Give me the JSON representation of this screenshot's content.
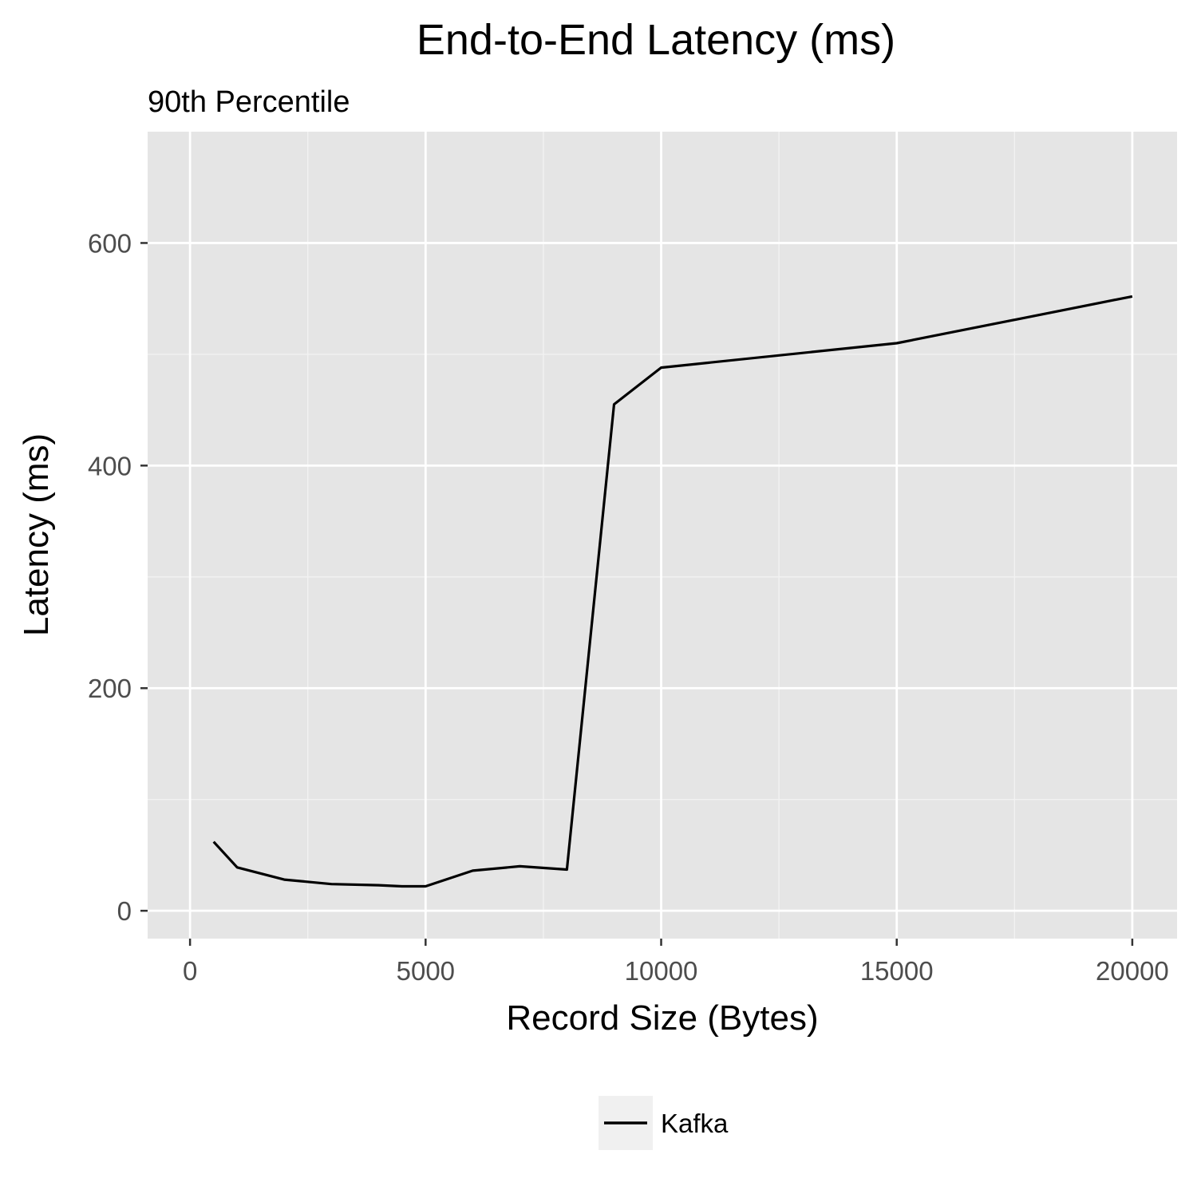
{
  "chart_data": {
    "type": "line",
    "title": "End-to-End Latency (ms)",
    "subtitle": "90th Percentile",
    "xlabel": "Record Size (Bytes)",
    "ylabel": "Latency (ms)",
    "xlim": [
      -900,
      20950
    ],
    "ylim": [
      -25,
      700
    ],
    "x_ticks": [
      0,
      5000,
      10000,
      15000,
      20000
    ],
    "x_tick_labels": [
      "0",
      "5000",
      "10000",
      "15000",
      "20000"
    ],
    "y_ticks": [
      0,
      200,
      400,
      600
    ],
    "y_tick_labels": [
      "0",
      "200",
      "400",
      "600"
    ],
    "grid": true,
    "legend_position": "bottom",
    "panel_background": "#e5e5e5",
    "series": [
      {
        "name": "Kafka",
        "color": "#000000",
        "x": [
          500,
          1000,
          2000,
          3000,
          4000,
          4500,
          5000,
          6000,
          7000,
          8000,
          9000,
          10000,
          15000,
          20000
        ],
        "y": [
          62,
          39,
          28,
          24,
          23,
          22,
          22,
          36,
          40,
          37,
          455,
          488,
          510,
          552
        ]
      }
    ]
  }
}
